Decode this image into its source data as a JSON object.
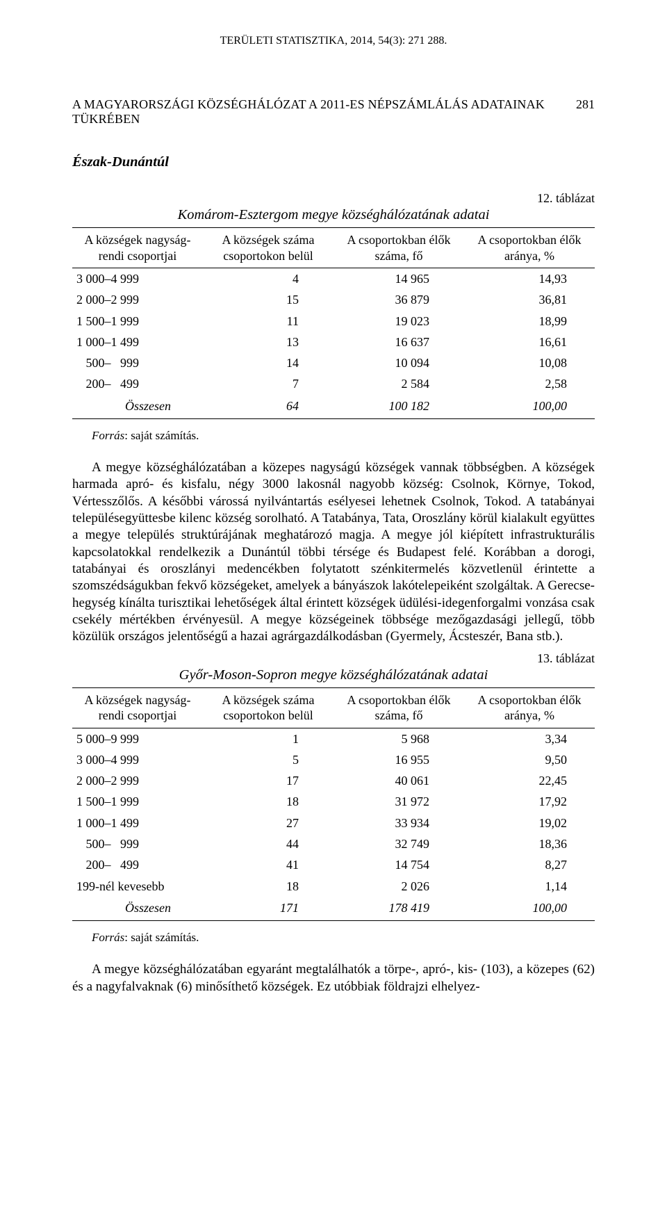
{
  "running_head": "TERÜLETI STATISZTIKA, 2014, 54(3): 271 288.",
  "page_title": "A MAGYARORSZÁGI KÖZSÉGHÁLÓZAT A 2011-ES NÉPSZÁMLÁLÁS ADATAINAK TÜKRÉBEN",
  "page_number": "281",
  "section_heading": "Észak-Dunántúl",
  "table12": {
    "number": "12. táblázat",
    "caption": "Komárom-Esztergom megye községhálózatának adatai",
    "headers": {
      "col1": "A községek nagyság-\nrendi csoportjai",
      "col2": "A községek száma\ncsoportokon belül",
      "col3": "A csoportokban élők\nszáma, fő",
      "col4": "A csoportokban élők\naránya, %"
    },
    "rows": [
      {
        "cat": "3 000–4 999",
        "a": "4",
        "b": "14 965",
        "c": "14,93"
      },
      {
        "cat": "2 000–2 999",
        "a": "15",
        "b": "36 879",
        "c": "36,81"
      },
      {
        "cat": "1 500–1 999",
        "a": "11",
        "b": "19 023",
        "c": "18,99"
      },
      {
        "cat": "1 000–1 499",
        "a": "13",
        "b": "16 637",
        "c": "16,61"
      },
      {
        "cat": "   500–   999",
        "a": "14",
        "b": "10 094",
        "c": "10,08"
      },
      {
        "cat": "   200–   499",
        "a": "7",
        "b": "2 584",
        "c": "2,58"
      }
    ],
    "total": {
      "cat": "Összesen",
      "a": "64",
      "b": "100 182",
      "c": "100,00"
    }
  },
  "source_label": "Forrás",
  "source_text": ": saját számítás.",
  "paragraph1": "A megye községhálózatában a közepes nagyságú községek vannak többségben. A községek harmada apró- és kisfalu, négy 3000 lakosnál nagyobb község: Csolnok, Környe, Tokod, Vértesszőlős. A későbbi várossá nyilvántartás esélyesei lehetnek Csolnok, Tokod. A tatabányai településegyüttesbe kilenc község sorolható. A Tatabánya, Tata, Oroszlány körül kialakult együttes a megye település struktúrájának meghatározó magja. A megye jól kiépített infrastrukturális kapcsolatokkal rendelkezik a Dunántúl többi térsége és Budapest felé. Korábban a dorogi, tatabányai és oroszlányi medencékben folytatott szénkitermelés közvetlenül érintette a szomszédságukban fekvő községeket, amelyek a bányászok lakótelepeiként szolgáltak. A Gerecse-hegység kínálta turisztikai lehetőségek által érintett községek üdülési-idegenforgalmi vonzása csak csekély mértékben érvényesül. A megye községeinek többsége mezőgazdasági jellegű, több közülük országos jelentőségű a hazai agrárgazdálkodásban (Gyermely, Ácsteszér, Bana stb.).",
  "table13": {
    "number": "13. táblázat",
    "caption": "Győr-Moson-Sopron megye községhálózatának adatai",
    "headers": {
      "col1": "A községek nagyság-\nrendi csoportjai",
      "col2": "A községek száma\ncsoportokon belül",
      "col3": "A csoportokban élők\nszáma, fő",
      "col4": "A csoportokban élők\naránya, %"
    },
    "rows": [
      {
        "cat": "5 000–9 999",
        "a": "1",
        "b": "5 968",
        "c": "3,34"
      },
      {
        "cat": "3 000–4 999",
        "a": "5",
        "b": "16 955",
        "c": "9,50"
      },
      {
        "cat": "2 000–2 999",
        "a": "17",
        "b": "40 061",
        "c": "22,45"
      },
      {
        "cat": "1 500–1 999",
        "a": "18",
        "b": "31 972",
        "c": "17,92"
      },
      {
        "cat": "1 000–1 499",
        "a": "27",
        "b": "33 934",
        "c": "19,02"
      },
      {
        "cat": "   500–   999",
        "a": "44",
        "b": "32 749",
        "c": "18,36"
      },
      {
        "cat": "   200–   499",
        "a": "41",
        "b": "14 754",
        "c": "8,27"
      },
      {
        "cat": "199-nél kevesebb",
        "a": "18",
        "b": "2 026",
        "c": "1,14"
      }
    ],
    "total": {
      "cat": "Összesen",
      "a": "171",
      "b": "178 419",
      "c": "100,00"
    }
  },
  "paragraph2": "A megye községhálózatában egyaránt megtalálhatók a törpe-, apró-, kis- (103), a közepes (62) és a nagyfalvaknak (6) minősíthető községek. Ez utóbbiak földrajzi elhelyez-"
}
